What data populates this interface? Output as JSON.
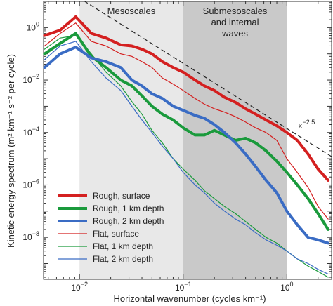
{
  "chart_data": {
    "type": "line",
    "xlabel": "Horizontal wavenumber (cycles km⁻¹)",
    "ylabel": "Kinetic energy spectrum (m² km⁻¹ s⁻² per cycle)",
    "x_scale": "log",
    "y_scale": "log",
    "xlim": [
      0.0045,
      2.7
    ],
    "ylim": [
      2.5e-10,
      10
    ],
    "x_ticks": [
      {
        "value": 0.01,
        "base": "10",
        "exp": "−2"
      },
      {
        "value": 0.1,
        "base": "10",
        "exp": "−1"
      },
      {
        "value": 1,
        "base": "10",
        "exp": "0"
      }
    ],
    "y_ticks": [
      {
        "value": 1,
        "base": "10",
        "exp": "0"
      },
      {
        "value": 0.01,
        "base": "10",
        "exp": "−2"
      },
      {
        "value": 0.0001,
        "base": "10",
        "exp": "−4"
      },
      {
        "value": 1e-06,
        "base": "10",
        "exp": "−6"
      },
      {
        "value": 1e-08,
        "base": "10",
        "exp": "−8"
      }
    ],
    "bands": [
      {
        "label": "Mesoscales",
        "x_from": 0.01,
        "x_to": 0.1,
        "color": "#e8e8e8"
      },
      {
        "label": "Submesoscales\nand internal\nwaves",
        "x_from": 0.1,
        "x_to": 1.0,
        "color": "#c9c9c9"
      }
    ],
    "reference_line": {
      "label_base": "κ",
      "label_exp": "−2.5",
      "x": [
        0.0085,
        2.7
      ],
      "y": [
        20,
        1.2e-05
      ]
    },
    "series": [
      {
        "name": "Rough, surface",
        "color": "#d42020",
        "width": 4,
        "x": [
          0.0046,
          0.0065,
          0.0092,
          0.013,
          0.018,
          0.025,
          0.032,
          0.04,
          0.05,
          0.063,
          0.08,
          0.1,
          0.13,
          0.16,
          0.2,
          0.25,
          0.32,
          0.4,
          0.5,
          0.63,
          0.8,
          1.0,
          1.26,
          1.6,
          2.0,
          2.5
        ],
        "y": [
          0.5,
          0.8,
          2.6,
          0.6,
          0.4,
          0.22,
          0.2,
          0.15,
          0.1,
          0.05,
          0.03,
          0.02,
          0.01,
          0.006,
          0.004,
          0.0022,
          0.0014,
          0.0008,
          0.0005,
          0.0003,
          0.00018,
          0.0001,
          5e-05,
          1.5e-05,
          4e-06,
          1.5e-06
        ]
      },
      {
        "name": "Rough, 1 km depth",
        "color": "#1a9a3c",
        "width": 4,
        "x": [
          0.0046,
          0.0065,
          0.0092,
          0.013,
          0.018,
          0.025,
          0.032,
          0.04,
          0.05,
          0.063,
          0.08,
          0.1,
          0.13,
          0.16,
          0.2,
          0.25,
          0.32,
          0.4,
          0.5,
          0.63,
          0.8,
          1.0,
          1.26,
          1.6,
          2.0,
          2.5
        ],
        "y": [
          0.1,
          0.25,
          0.6,
          0.08,
          0.03,
          0.01,
          0.006,
          0.0025,
          0.001,
          0.0005,
          0.0003,
          0.00015,
          8e-05,
          8e-05,
          0.00012,
          8e-05,
          5e-05,
          6e-05,
          4e-05,
          2e-05,
          8e-06,
          3e-06,
          1e-06,
          3e-07,
          8e-08,
          2e-08
        ]
      },
      {
        "name": "Rough, 2 km depth",
        "color": "#3a6cc4",
        "width": 4,
        "x": [
          0.0046,
          0.0065,
          0.0092,
          0.013,
          0.018,
          0.025,
          0.032,
          0.04,
          0.05,
          0.063,
          0.08,
          0.1,
          0.13,
          0.16,
          0.2,
          0.25,
          0.32,
          0.4,
          0.5,
          0.63,
          0.8,
          1.0,
          1.26,
          1.6,
          2.0,
          2.5
        ],
        "y": [
          0.03,
          0.1,
          0.18,
          0.07,
          0.05,
          0.03,
          0.01,
          0.006,
          0.003,
          0.002,
          0.001,
          0.0007,
          0.00045,
          0.00035,
          0.0002,
          0.0001,
          4e-05,
          1.5e-05,
          5e-06,
          1.5e-06,
          5e-07,
          1e-07,
          3e-08,
          1e-08,
          8e-09,
          6e-09
        ]
      },
      {
        "name": "Flat, surface",
        "color": "#d42020",
        "width": 1.2,
        "x": [
          0.0046,
          0.0065,
          0.0092,
          0.013,
          0.018,
          0.025,
          0.032,
          0.04,
          0.05,
          0.063,
          0.08,
          0.1,
          0.13,
          0.16,
          0.2,
          0.25,
          0.32,
          0.4,
          0.5,
          0.63,
          0.8,
          1.0,
          1.26,
          1.6,
          2.0,
          2.5
        ],
        "y": [
          0.2,
          0.6,
          1.5,
          0.3,
          0.2,
          0.1,
          0.08,
          0.05,
          0.03,
          0.012,
          0.007,
          0.004,
          0.002,
          0.0012,
          0.0008,
          0.0006,
          0.0004,
          0.00025,
          0.00015,
          0.0001,
          5e-05,
          1e-05,
          3e-06,
          8e-07,
          1.5e-07,
          5e-08
        ]
      },
      {
        "name": "Flat, 1 km depth",
        "color": "#1a9a3c",
        "width": 1.2,
        "x": [
          0.0046,
          0.0065,
          0.0092,
          0.013,
          0.018,
          0.025,
          0.032,
          0.04,
          0.05,
          0.063,
          0.08,
          0.1,
          0.13,
          0.16,
          0.2,
          0.25,
          0.32,
          0.4,
          0.5,
          0.63,
          0.8,
          1.0,
          1.26,
          1.6,
          2.0,
          2.5
        ],
        "y": [
          0.15,
          0.4,
          0.5,
          0.1,
          0.02,
          0.006,
          0.0015,
          0.0005,
          0.00012,
          4e-05,
          1e-05,
          4e-06,
          1.5e-06,
          6e-07,
          3e-07,
          1.5e-07,
          8e-08,
          4e-08,
          2e-08,
          1e-08,
          6e-09,
          3e-09,
          1.5e-09,
          8e-10,
          5e-10,
          3e-10
        ]
      },
      {
        "name": "Flat, 2 km depth",
        "color": "#3a6cc4",
        "width": 1.2,
        "x": [
          0.0046,
          0.0065,
          0.0092,
          0.013,
          0.018,
          0.025,
          0.032,
          0.04,
          0.05,
          0.063,
          0.08,
          0.1,
          0.13,
          0.16,
          0.2,
          0.25,
          0.32,
          0.4,
          0.5,
          0.63,
          0.8,
          1.0,
          1.26,
          1.6,
          2.0,
          2.5
        ],
        "y": [
          0.06,
          0.2,
          0.3,
          0.05,
          0.012,
          0.004,
          0.001,
          0.0003,
          0.0001,
          3e-05,
          1e-05,
          3e-06,
          1e-06,
          5e-07,
          2e-07,
          1e-07,
          5e-08,
          3e-08,
          1.5e-08,
          8e-09,
          5e-09,
          3e-09,
          1.5e-09,
          1e-09,
          6e-10,
          4e-10
        ]
      }
    ],
    "legend_position": "bottom-left"
  }
}
